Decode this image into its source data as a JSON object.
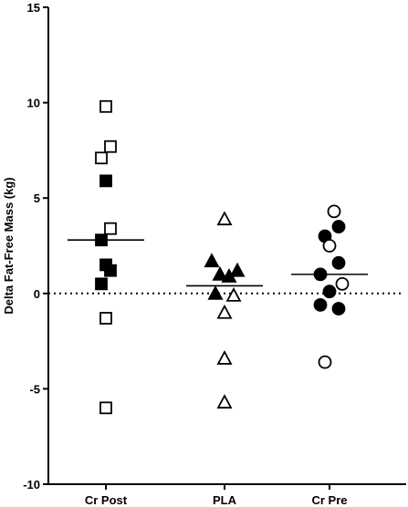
{
  "chart_data": {
    "type": "scatter",
    "ylabel": "Delta Fat-Free Mass (kg)",
    "ylim": [
      -10,
      15
    ],
    "yticks": [
      15,
      10,
      5,
      0,
      -5,
      -10
    ],
    "ytick_labels": [
      "15",
      "10",
      "5",
      "0",
      "-5",
      "-10"
    ],
    "categories": [
      "Cr Post",
      "PLA",
      "Cr Pre"
    ],
    "reference_line": {
      "y": 0,
      "style": "dotted"
    },
    "means": [
      2.8,
      0.4,
      1.0
    ],
    "groups": [
      {
        "category": "Cr Post",
        "marker": "square",
        "points": [
          {
            "y": 9.8,
            "filled": false,
            "offset": 0
          },
          {
            "y": 7.7,
            "filled": false,
            "offset": 0.5
          },
          {
            "y": 7.1,
            "filled": false,
            "offset": -0.5
          },
          {
            "y": 5.9,
            "filled": true,
            "offset": 0
          },
          {
            "y": 3.4,
            "filled": false,
            "offset": 0.5
          },
          {
            "y": 2.8,
            "filled": true,
            "offset": -0.5
          },
          {
            "y": 1.5,
            "filled": true,
            "offset": 0
          },
          {
            "y": 1.2,
            "filled": true,
            "offset": 0.5
          },
          {
            "y": 0.5,
            "filled": true,
            "offset": -0.5
          },
          {
            "y": -1.3,
            "filled": false,
            "offset": 0
          },
          {
            "y": -6.0,
            "filled": false,
            "offset": 0
          }
        ]
      },
      {
        "category": "PLA",
        "marker": "triangle",
        "points": [
          {
            "y": 3.9,
            "filled": false,
            "offset": 0
          },
          {
            "y": 1.7,
            "filled": true,
            "offset": -1.4
          },
          {
            "y": 1.2,
            "filled": true,
            "offset": 1.4
          },
          {
            "y": 1.0,
            "filled": true,
            "offset": -0.5
          },
          {
            "y": 0.9,
            "filled": true,
            "offset": 0.5
          },
          {
            "y": 0.0,
            "filled": true,
            "offset": -1.0
          },
          {
            "y": -0.1,
            "filled": false,
            "offset": 1.0
          },
          {
            "y": -1.0,
            "filled": false,
            "offset": 0
          },
          {
            "y": -3.4,
            "filled": false,
            "offset": 0
          },
          {
            "y": -5.7,
            "filled": false,
            "offset": 0
          }
        ]
      },
      {
        "category": "Cr Pre",
        "marker": "circle",
        "points": [
          {
            "y": 4.3,
            "filled": false,
            "offset": 0.5
          },
          {
            "y": 3.5,
            "filled": true,
            "offset": 1.0
          },
          {
            "y": 3.0,
            "filled": true,
            "offset": -0.5
          },
          {
            "y": 2.5,
            "filled": false,
            "offset": 0
          },
          {
            "y": 1.6,
            "filled": true,
            "offset": 1.0
          },
          {
            "y": 1.0,
            "filled": true,
            "offset": -1.0
          },
          {
            "y": 0.5,
            "filled": false,
            "offset": 1.4
          },
          {
            "y": 0.1,
            "filled": true,
            "offset": 0
          },
          {
            "y": -0.6,
            "filled": true,
            "offset": -1.0
          },
          {
            "y": -0.8,
            "filled": true,
            "offset": 1.0
          },
          {
            "y": -3.6,
            "filled": false,
            "offset": -0.5
          }
        ]
      }
    ]
  }
}
